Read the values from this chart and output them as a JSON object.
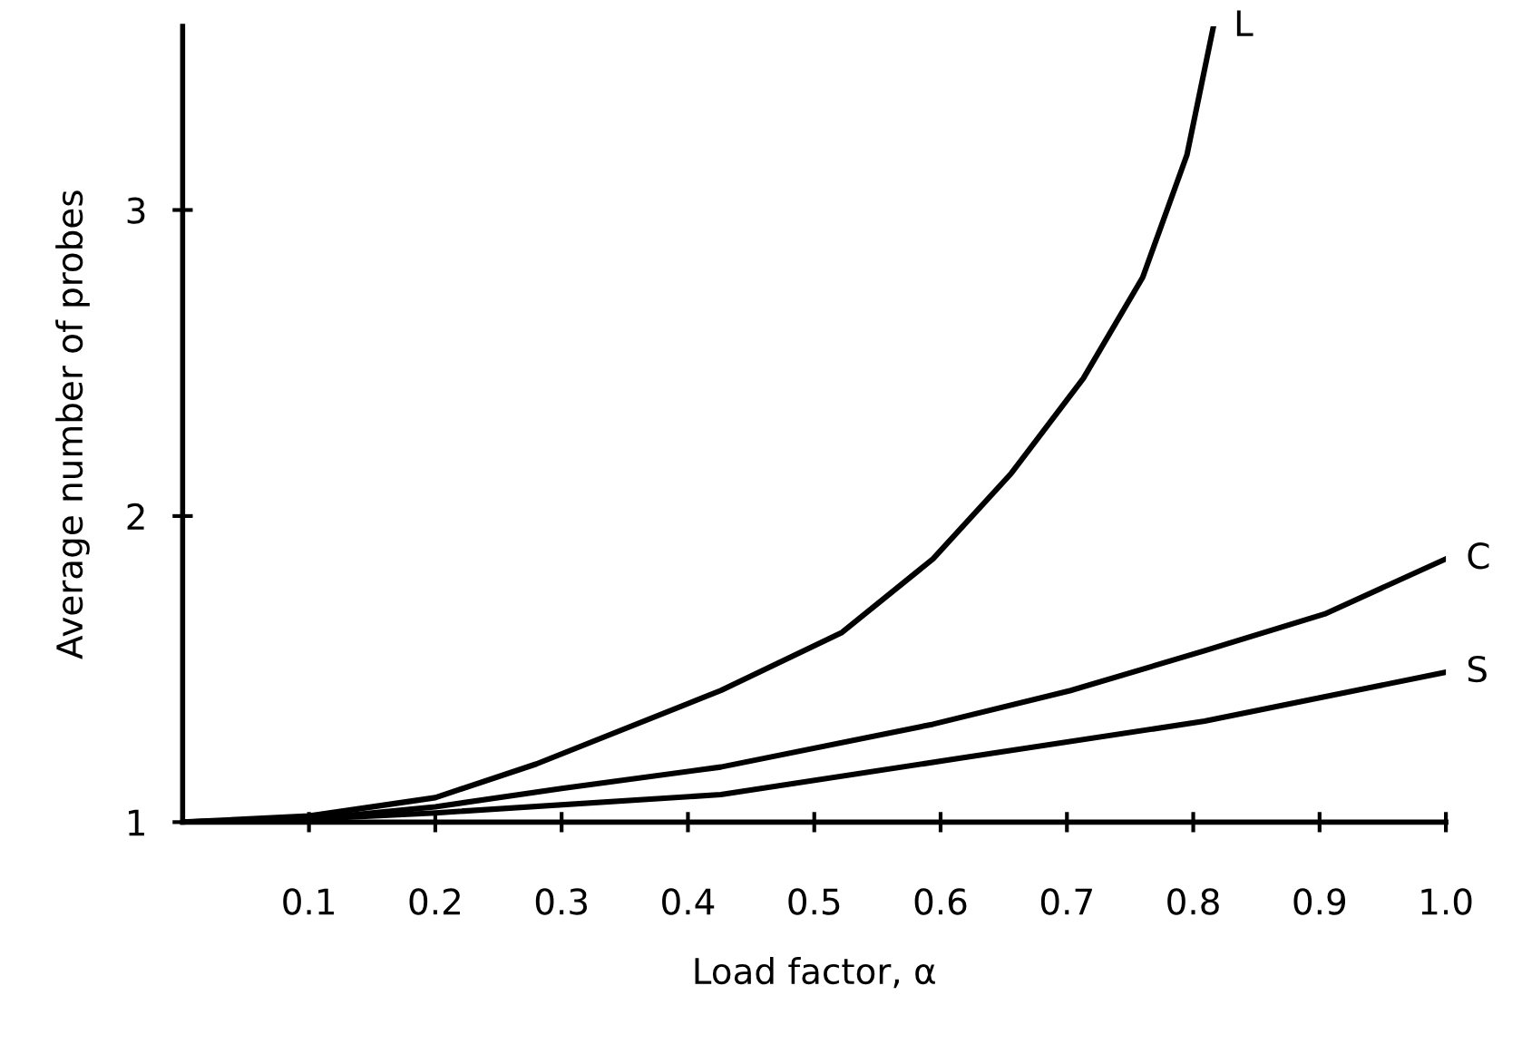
{
  "chart_data": {
    "type": "line",
    "xlabel": "Load factor, α",
    "ylabel": "Average number of probes",
    "xlim": [
      0,
      1.0
    ],
    "ylim": [
      1,
      3.6
    ],
    "xticks": [
      {
        "value": 0.1,
        "label": "0.1"
      },
      {
        "value": 0.2,
        "label": "0.2"
      },
      {
        "value": 0.3,
        "label": "0.3"
      },
      {
        "value": 0.4,
        "label": "0.4"
      },
      {
        "value": 0.5,
        "label": "0.5"
      },
      {
        "value": 0.6,
        "label": "0.6"
      },
      {
        "value": 0.7,
        "label": "0.7"
      },
      {
        "value": 0.8,
        "label": "0.8"
      },
      {
        "value": 0.9,
        "label": "0.9"
      },
      {
        "value": 1.0,
        "label": "1.0"
      }
    ],
    "yticks": [
      1,
      2,
      3
    ],
    "grid": false,
    "legend": false,
    "marker": "none",
    "line_style": "solid",
    "series": [
      {
        "name": "L",
        "color": "#000000",
        "x": [
          0,
          0.1,
          0.2,
          0.28,
          0.426,
          0.522,
          0.594,
          0.656,
          0.713,
          0.76,
          0.795,
          0.816
        ],
        "values": [
          1,
          1.02,
          1.08,
          1.19,
          1.43,
          1.62,
          1.86,
          2.14,
          2.45,
          2.78,
          3.18,
          3.6
        ]
      },
      {
        "name": "C",
        "color": "#000000",
        "x": [
          0,
          0.1,
          0.2,
          0.3,
          0.426,
          0.594,
          0.703,
          0.809,
          0.904,
          1.0
        ],
        "values": [
          1,
          1.01,
          1.05,
          1.11,
          1.18,
          1.32,
          1.43,
          1.56,
          1.68,
          1.86
        ]
      },
      {
        "name": "S",
        "color": "#000000",
        "x": [
          0,
          0.1,
          0.2,
          0.426,
          0.617,
          0.809,
          1.0
        ],
        "values": [
          1,
          1.01,
          1.03,
          1.09,
          1.21,
          1.33,
          1.49
        ]
      }
    ]
  }
}
